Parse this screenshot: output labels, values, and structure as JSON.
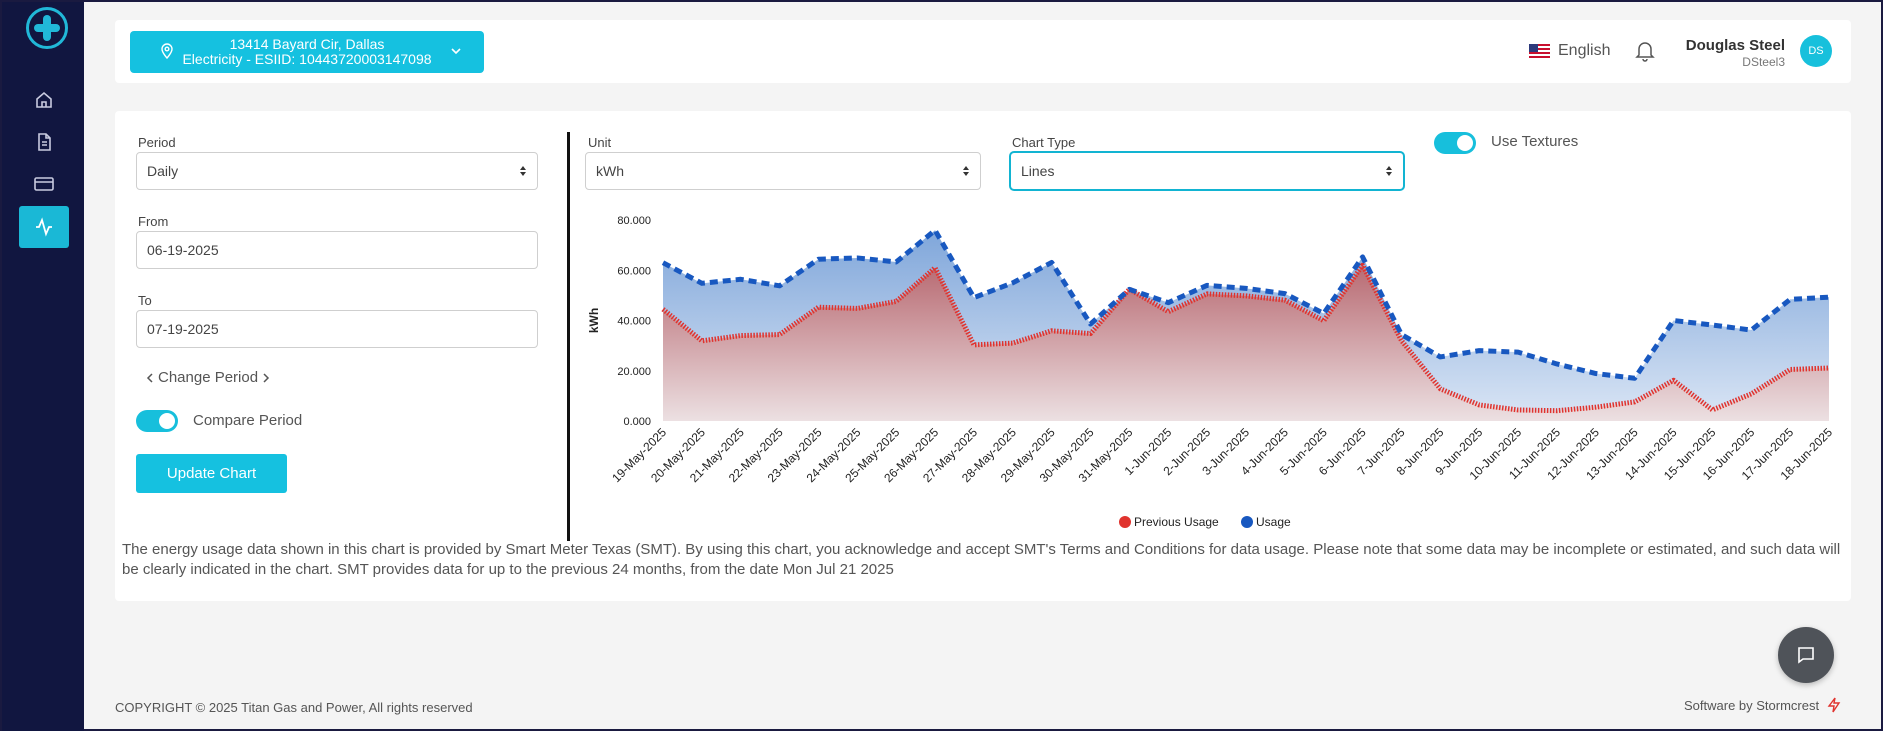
{
  "header": {
    "address_line1": "13414 Bayard Cir, Dallas",
    "address_line2": "Electricity - ESIID: 10443720003147098",
    "language": "English",
    "user_name": "Douglas Steel",
    "user_id": "DSteel3",
    "avatar_initials": "DS"
  },
  "sidebar": {
    "items": [
      {
        "icon": "home-icon"
      },
      {
        "icon": "document-icon"
      },
      {
        "icon": "credit-card-icon"
      },
      {
        "icon": "activity-icon",
        "active": true
      }
    ]
  },
  "form": {
    "period_label": "Period",
    "period_value": "Daily",
    "from_label": "From",
    "from_value": "06-19-2025",
    "to_label": "To",
    "to_value": "07-19-2025",
    "change_period": "Change Period",
    "compare_label": "Compare Period",
    "compare_on": true,
    "update_button": "Update Chart",
    "unit_label": "Unit",
    "unit_value": "kWh",
    "chart_type_label": "Chart Type",
    "chart_type_value": "Lines",
    "textures_label": "Use Textures",
    "textures_on": true
  },
  "chart_data": {
    "type": "area",
    "ylabel": "kWh",
    "ylim": [
      0,
      80
    ],
    "yticks": [
      "0.000",
      "20.000",
      "40.000",
      "60.000",
      "80.000"
    ],
    "categories": [
      "19-May-2025",
      "20-May-2025",
      "21-May-2025",
      "22-May-2025",
      "23-May-2025",
      "24-May-2025",
      "25-May-2025",
      "26-May-2025",
      "27-May-2025",
      "28-May-2025",
      "29-May-2025",
      "30-May-2025",
      "31-May-2025",
      "1-Jun-2025",
      "2-Jun-2025",
      "3-Jun-2025",
      "4-Jun-2025",
      "5-Jun-2025",
      "6-Jun-2025",
      "7-Jun-2025",
      "8-Jun-2025",
      "9-Jun-2025",
      "10-Jun-2025",
      "11-Jun-2025",
      "12-Jun-2025",
      "13-Jun-2025",
      "14-Jun-2025",
      "15-Jun-2025",
      "16-Jun-2025",
      "17-Jun-2025",
      "18-Jun-2025"
    ],
    "series": [
      {
        "name": "Previous Usage",
        "color": "#e0332e",
        "values": [
          44.5,
          31.9,
          34.0,
          34.4,
          45.3,
          44.8,
          47.6,
          61.0,
          30.3,
          31.0,
          35.9,
          34.8,
          52.5,
          43.5,
          50.6,
          49.8,
          48.1,
          39.9,
          62.0,
          32.0,
          12.8,
          6.4,
          4.4,
          4.1,
          5.5,
          7.6,
          16.2,
          4.4,
          10.8,
          20.5,
          21.1
        ]
      },
      {
        "name": "Usage",
        "color": "#1858c0",
        "values": [
          63.0,
          54.8,
          56.4,
          53.8,
          64.4,
          64.9,
          63.3,
          75.9,
          49.1,
          55.0,
          63.1,
          38.6,
          52.4,
          47.1,
          54.0,
          52.8,
          50.7,
          42.8,
          65.3,
          34.4,
          25.5,
          28.0,
          27.4,
          22.7,
          18.9,
          17.0,
          40.0,
          38.2,
          36.2,
          48.4,
          49.3
        ]
      }
    ],
    "legend": "bottom-center",
    "grid": false
  },
  "notice": "The energy usage data shown in this chart is provided by Smart Meter Texas (SMT). By using this chart, you acknowledge and accept SMT's Terms and Conditions for data usage. Please note that some data may be incomplete or estimated, and such data will be clearly indicated in the chart. SMT provides data for up to the previous 24 months, from the date Mon Jul 21 2025",
  "footer": {
    "copyright": "COPYRIGHT © 2025 Titan Gas and Power, All rights reserved",
    "software": "Software by Stormcrest"
  },
  "colors": {
    "accent": "#15c1e0",
    "sidebar": "#111640",
    "previous": "#e0332e",
    "usage": "#1858c0"
  }
}
